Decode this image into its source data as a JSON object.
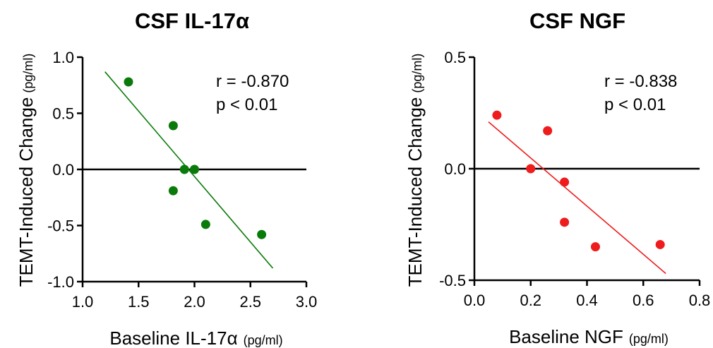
{
  "chart_data": [
    {
      "type": "scatter",
      "title": "CSF IL-17α",
      "xlabel": "Baseline IL-17α",
      "xlabel_unit": "(pg/ml)",
      "ylabel": "TEMT-Induced Change",
      "ylabel_unit": "(pg/ml)",
      "xlim": [
        1.0,
        3.0
      ],
      "ylim": [
        -1.0,
        1.0
      ],
      "xticks": [
        "1.0",
        "1.5",
        "2.0",
        "2.5",
        "3.0"
      ],
      "yticks": [
        "1.0",
        "0.5",
        "0.0",
        "-0.5",
        "-1.0"
      ],
      "color": "#0a7a0a",
      "points": [
        {
          "x": 1.41,
          "y": 0.78
        },
        {
          "x": 1.81,
          "y": 0.39
        },
        {
          "x": 1.81,
          "y": -0.19
        },
        {
          "x": 1.91,
          "y": 0.0
        },
        {
          "x": 2.0,
          "y": 0.0
        },
        {
          "x": 2.1,
          "y": -0.49
        },
        {
          "x": 2.6,
          "y": -0.58
        }
      ],
      "fit_line": {
        "x1": 1.2,
        "y1": 0.87,
        "x2": 2.7,
        "y2": -0.88
      },
      "stats": {
        "r": "r = -0.870",
        "p": "p < 0.01"
      }
    },
    {
      "type": "scatter",
      "title": "CSF NGF",
      "xlabel": "Baseline NGF",
      "xlabel_unit": "(pg/ml)",
      "ylabel": "TEMT-Induced Change",
      "ylabel_unit": "(pg/ml)",
      "xlim": [
        0.0,
        0.8
      ],
      "ylim": [
        -0.5,
        0.5
      ],
      "xticks": [
        "0.0",
        "0.2",
        "0.4",
        "0.6",
        "0.8"
      ],
      "yticks": [
        "0.5",
        "0.0",
        "-0.5"
      ],
      "color": "#ee1c1c",
      "points": [
        {
          "x": 0.08,
          "y": 0.24
        },
        {
          "x": 0.2,
          "y": 0.0
        },
        {
          "x": 0.26,
          "y": 0.17
        },
        {
          "x": 0.32,
          "y": -0.06
        },
        {
          "x": 0.32,
          "y": -0.24
        },
        {
          "x": 0.43,
          "y": -0.35
        },
        {
          "x": 0.66,
          "y": -0.34
        }
      ],
      "fit_line": {
        "x1": 0.05,
        "y1": 0.21,
        "x2": 0.68,
        "y2": -0.47
      },
      "stats": {
        "r": "r = -0.838",
        "p": "p < 0.01"
      }
    }
  ]
}
